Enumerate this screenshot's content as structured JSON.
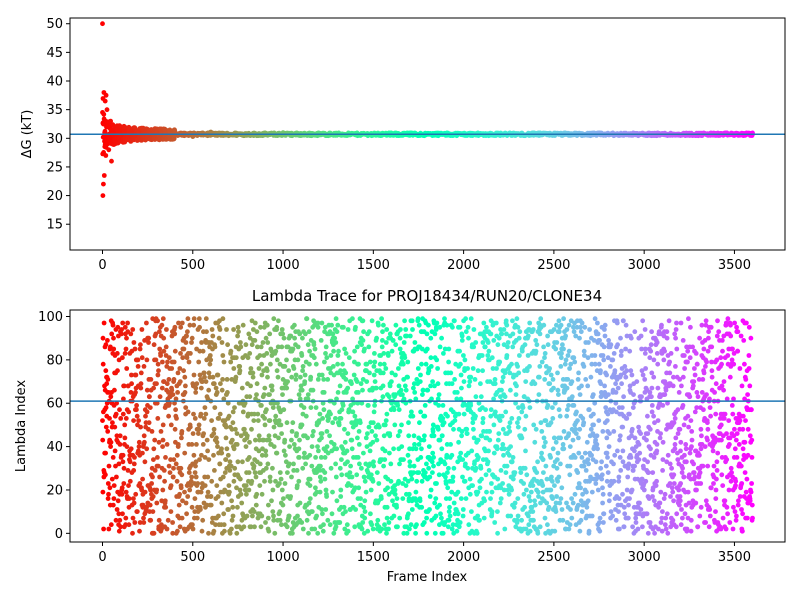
{
  "chart_data": [
    {
      "type": "scatter",
      "title": "",
      "xlabel": "",
      "ylabel": "ΔG (kT)",
      "xlim": [
        -180,
        3780
      ],
      "ylim": [
        10.5,
        51
      ],
      "xticks": [
        0,
        500,
        1000,
        1500,
        2000,
        2500,
        3000,
        3500
      ],
      "yticks": [
        15,
        20,
        25,
        30,
        35,
        40,
        45,
        50
      ],
      "colormap": "rainbow_r",
      "reference_line": {
        "y": 30.7,
        "color": "#1f77b4"
      },
      "series": [
        {
          "points_summary": "one point per frame, frames 0–3600; early points scatter between 20 and 50, converging to ~30.7 after ~400 frames",
          "x": [
            0,
            2,
            4,
            5,
            8,
            10,
            12,
            15,
            18,
            20,
            22,
            25,
            30,
            35,
            40,
            45,
            50,
            60,
            70,
            80,
            90,
            100,
            120,
            140,
            160,
            180,
            200,
            250,
            300,
            350,
            400,
            450,
            500,
            550,
            600,
            700,
            800,
            900,
            1000,
            1200,
            1500,
            2000,
            2500,
            3000,
            3500,
            3600
          ],
          "y": [
            50,
            20,
            30.2,
            22,
            38,
            23.5,
            31,
            36.5,
            27,
            37.5,
            29,
            35,
            32,
            28,
            30,
            33,
            26,
            31,
            29.5,
            31.5,
            30,
            30.5,
            31.2,
            30.4,
            31.1,
            30.6,
            30.9,
            30.5,
            31,
            30.8,
            31.3,
            30.9,
            30.3,
            30.8,
            31.1,
            30.6,
            30.8,
            30.7,
            31,
            30.8,
            30.7,
            30.7,
            30.7,
            30.7,
            30.7,
            30.7
          ]
        }
      ]
    },
    {
      "type": "scatter",
      "title": "Lambda Trace for PROJ18434/RUN20/CLONE34",
      "xlabel": "Frame Index",
      "ylabel": "Lambda Index",
      "xlim": [
        -180,
        3780
      ],
      "ylim": [
        -4,
        103
      ],
      "xticks": [
        0,
        500,
        1000,
        1500,
        2000,
        2500,
        3000,
        3500
      ],
      "yticks": [
        0,
        20,
        40,
        60,
        80,
        100
      ],
      "colormap": "rainbow_r",
      "reference_line": {
        "y": 61,
        "color": "#1f77b4"
      },
      "series": [
        {
          "points_summary": "one point per frame, frames 0–3600; lambda index uniformly scattered between 0 and 99",
          "frame_range": [
            0,
            3600
          ],
          "lambda_range": [
            0,
            99
          ]
        }
      ]
    }
  ]
}
